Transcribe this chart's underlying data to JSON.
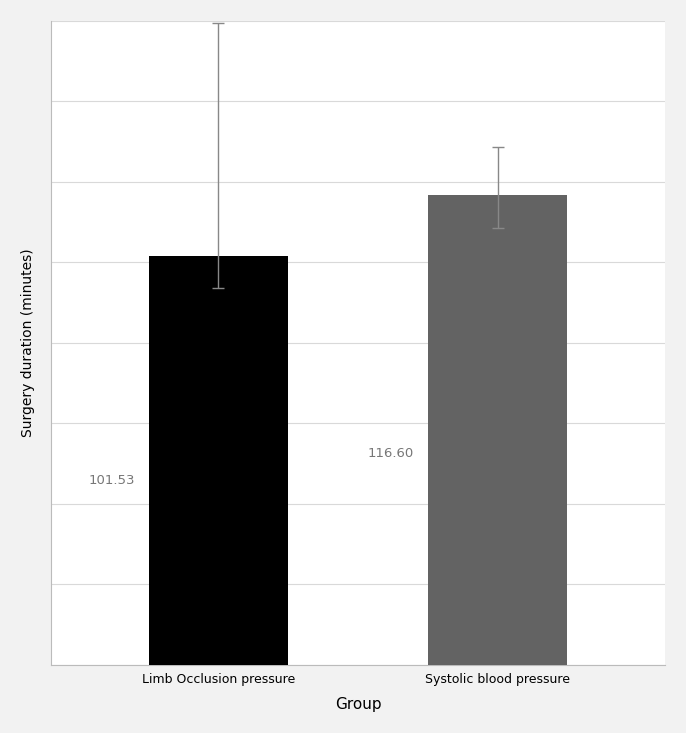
{
  "categories": [
    "Limb Occlusion pressure",
    "Systolic blood pressure"
  ],
  "values": [
    101.53,
    116.6
  ],
  "errors_upper": [
    58.0,
    12.0
  ],
  "errors_lower": [
    8.0,
    8.0
  ],
  "bar_colors": [
    "#000000",
    "#636363"
  ],
  "bar_width": 0.5,
  "value_labels": [
    "101.53",
    "116.60"
  ],
  "xlabel": "Group",
  "ylabel": "Surgery duration (minutes)",
  "ylim": [
    0,
    160
  ],
  "yticks": [
    0,
    20,
    40,
    60,
    80,
    100,
    120,
    140,
    160
  ],
  "grid_color": "#d9d9d9",
  "background_color": "#ffffff",
  "xlabel_fontsize": 11,
  "ylabel_fontsize": 10,
  "tick_fontsize": 9,
  "label_fontsize": 9.5,
  "figure_background": "#f2f2f2",
  "error_capsize": 4,
  "error_color": "#888888",
  "error_linewidth": 1.0
}
